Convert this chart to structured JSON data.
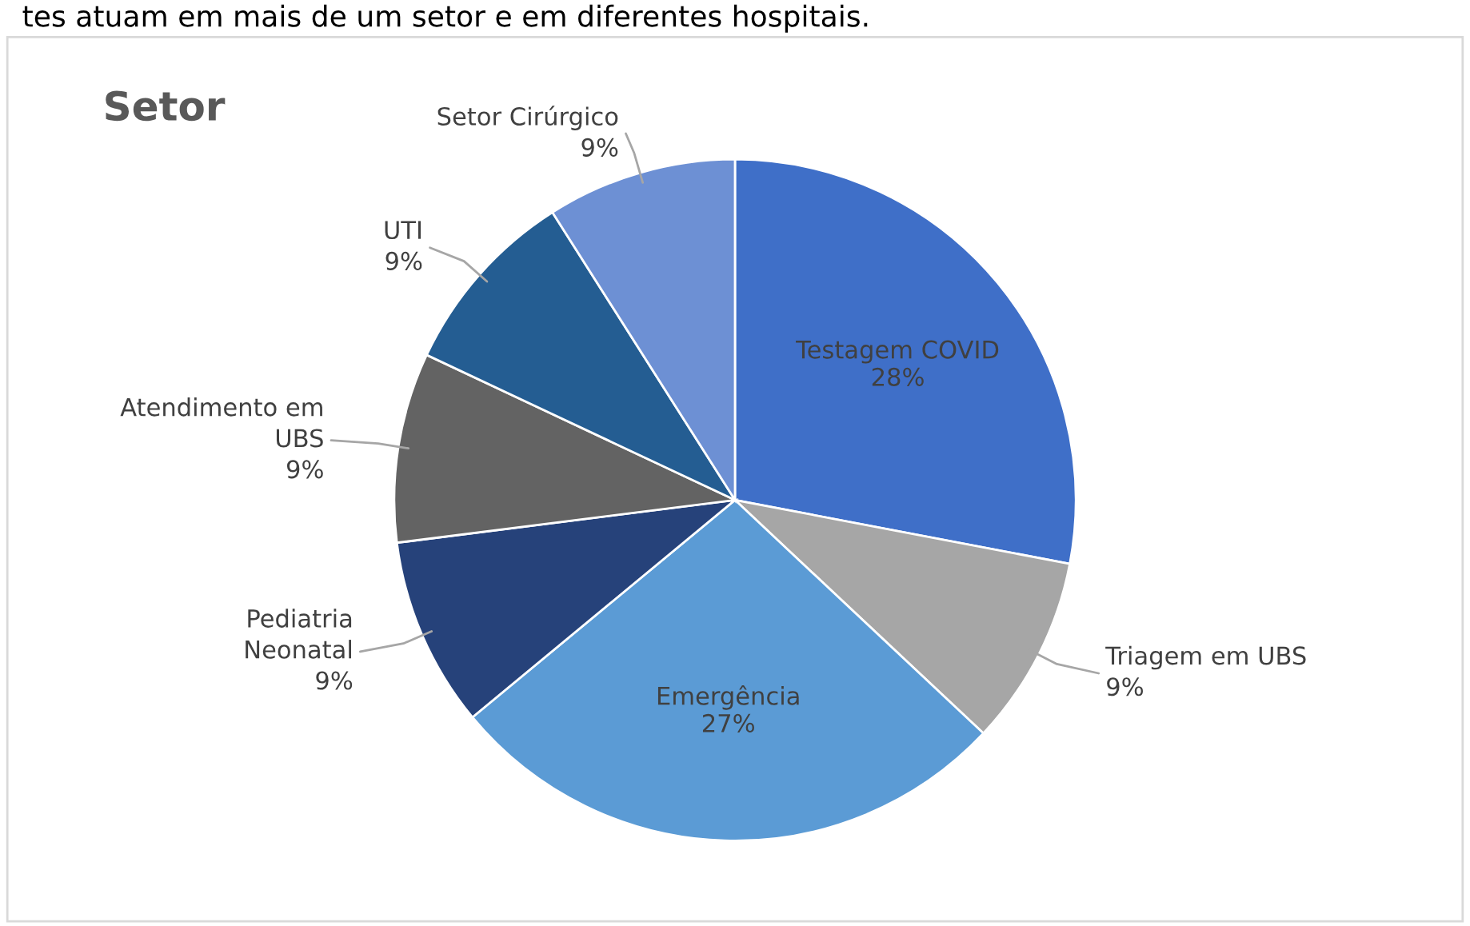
{
  "chart_data": {
    "type": "pie",
    "title": "Setor",
    "categories": [
      "Testagem COVID",
      "Triagem em UBS",
      "Emergência",
      "Pediatria\nNeonatal",
      "Atendimento em\nUBS",
      "UTI",
      "Setor Cirúrgico"
    ],
    "values": [
      28,
      9,
      27,
      9,
      9,
      9,
      9
    ],
    "colors": [
      "#3f6fc8",
      "#a6a6a6",
      "#5b9bd5",
      "#26427a",
      "#636363",
      "#245d92",
      "#6d90d4"
    ],
    "value_labels": [
      "28%",
      "9%",
      "27%",
      "9%",
      "9%",
      "9%",
      "9%"
    ],
    "annotations": [
      "tes atuam em mais de um setor e em diferentes hospitais."
    ]
  }
}
